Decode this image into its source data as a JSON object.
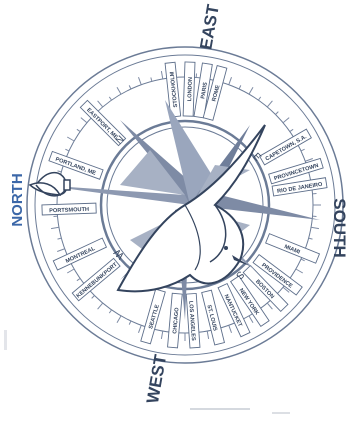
{
  "colors": {
    "ink": "#5d6e8a",
    "dark": "#34445e",
    "fill": "#8592aa",
    "north": "#3b67a8",
    "paper": "#ffffff"
  },
  "cardinals": {
    "north": "NORTH",
    "east": "EAST",
    "south": "SOUTH",
    "west": "WEST"
  },
  "inner_letters": {
    "n": "N",
    "e": "E",
    "s": "S",
    "w": "W"
  },
  "cities": [
    {
      "label": "STOCKHOLM"
    },
    {
      "label": "LONDON"
    },
    {
      "label": "PARIS"
    },
    {
      "label": "ROME"
    },
    {
      "label": "CAPETOWN, S.A."
    },
    {
      "label": "PROVINCETOWN"
    },
    {
      "label": "RIO DE JANEIRO"
    },
    {
      "label": "MIAMI"
    },
    {
      "label": "PROVIDENCE"
    },
    {
      "label": "BOSTON"
    },
    {
      "label": "NEW YORK"
    },
    {
      "label": "NANTUCKET"
    },
    {
      "label": "ST. LOUIS"
    },
    {
      "label": "LOS ANGELES"
    },
    {
      "label": "CHICAGO"
    },
    {
      "label": "SEATTLE"
    },
    {
      "label": "KENNEBUNKPORT"
    },
    {
      "label": "MONTREAL"
    },
    {
      "label": "PORTSMOUTH"
    },
    {
      "label": "PORTLAND, ME"
    },
    {
      "label": "EASTPORT, ME"
    }
  ]
}
